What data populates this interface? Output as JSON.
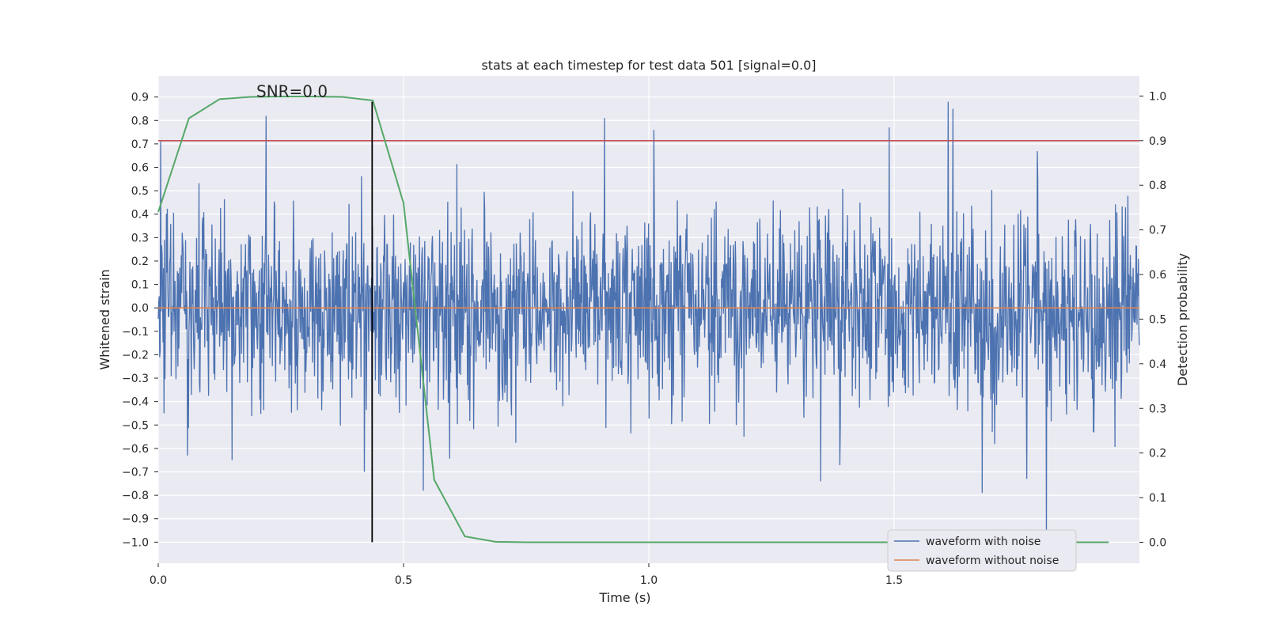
{
  "chart_data": {
    "type": "line",
    "title": "stats at each timestep for test data 501 [signal=0.0]",
    "xlabel": "Time (s)",
    "ylabel": "Whitened strain",
    "y2label": "Detection probability",
    "xlim": [
      0.0,
      2.0
    ],
    "ylim": [
      -1.09,
      0.99
    ],
    "y2lim": [
      -0.047,
      1.045
    ],
    "x_ticks": [
      0.0,
      0.5,
      1.0,
      1.5
    ],
    "x_tick_labels": [
      "0.0",
      "0.5",
      "1.0",
      "1.5"
    ],
    "y_ticks": [
      0.9,
      0.8,
      0.7,
      0.6,
      0.5,
      0.4,
      0.3,
      0.2,
      0.1,
      0.0,
      -0.1,
      -0.2,
      -0.3,
      -0.4,
      -0.5,
      -0.6,
      -0.7,
      -0.8,
      -0.9,
      -1.0
    ],
    "y_tick_labels": [
      "0.9",
      "0.8",
      "0.7",
      "0.6",
      "0.5",
      "0.4",
      "0.3",
      "0.2",
      "0.1",
      "0.0",
      "−0.1",
      "−0.2",
      "−0.3",
      "−0.4",
      "−0.5",
      "−0.6",
      "−0.7",
      "−0.8",
      "−0.9",
      "−1.0"
    ],
    "y2_ticks": [
      1.0,
      0.9,
      0.8,
      0.7,
      0.6,
      0.5,
      0.4,
      0.3,
      0.2,
      0.1,
      0.0
    ],
    "y2_tick_labels": [
      "1.0",
      "0.9",
      "0.8",
      "0.7",
      "0.6",
      "0.5",
      "0.4",
      "0.3",
      "0.2",
      "0.1",
      "0.0"
    ],
    "annotation": "SNR=0.0",
    "annotation_position": [
      0.2,
      0.9
    ],
    "threshold": {
      "axis": "right",
      "value": 0.9,
      "color": "#c44e52"
    },
    "marker_line": {
      "x": 0.436,
      "y_range": [
        -1.0,
        0.88
      ],
      "color": "#000000"
    },
    "legend": {
      "placement": "lower-right",
      "entries": [
        {
          "label": "waveform with noise",
          "color": "#4c72b0"
        },
        {
          "label": "waveform without noise",
          "color": "#dd8452"
        }
      ]
    },
    "series": [
      {
        "name": "waveform with noise",
        "axis": "left",
        "color": "#4c72b0",
        "kind": "noise",
        "x_range": [
          0.0,
          2.0
        ],
        "n_samples": 2048,
        "std": 0.2,
        "y_min": -1.0,
        "y_max": 0.88,
        "spikes": [
          {
            "x": 0.005,
            "y": 0.71
          },
          {
            "x": 0.012,
            "y": -0.45
          },
          {
            "x": 0.06,
            "y": -0.63
          },
          {
            "x": 0.22,
            "y": 0.82
          },
          {
            "x": 0.15,
            "y": -0.65
          },
          {
            "x": 0.42,
            "y": -0.7
          },
          {
            "x": 0.54,
            "y": -0.78
          },
          {
            "x": 0.91,
            "y": 0.81
          },
          {
            "x": 1.01,
            "y": 0.76
          },
          {
            "x": 1.35,
            "y": -0.74
          },
          {
            "x": 1.49,
            "y": 0.77
          },
          {
            "x": 1.61,
            "y": 0.88
          },
          {
            "x": 1.62,
            "y": 0.85
          },
          {
            "x": 1.81,
            "y": -0.98
          },
          {
            "x": 1.68,
            "y": -0.79
          },
          {
            "x": 1.77,
            "y": -0.73
          }
        ]
      },
      {
        "name": "waveform without noise",
        "axis": "left",
        "color": "#dd8452",
        "x": [
          0.0,
          2.0
        ],
        "y": [
          0.0,
          0.0
        ]
      },
      {
        "name": "detection probability",
        "axis": "right",
        "color": "#55a868",
        "x": [
          0.0,
          0.0625,
          0.125,
          0.1875,
          0.25,
          0.3125,
          0.375,
          0.4375,
          0.5,
          0.5625,
          0.625,
          0.6875,
          0.75,
          0.8125,
          0.875,
          0.9375,
          1.0,
          1.0625,
          1.125,
          1.1875,
          1.25,
          1.3125,
          1.375,
          1.4375,
          1.5,
          1.5625,
          1.625,
          1.6875,
          1.75,
          1.8125,
          1.875,
          1.9375
        ],
        "y": [
          0.74,
          0.95,
          0.993,
          0.998,
          0.999,
          0.999,
          0.998,
          0.99,
          0.76,
          0.14,
          0.013,
          0.001,
          0.0,
          0.0,
          0.0,
          0.0,
          0.0,
          0.0,
          0.0,
          0.0,
          0.0,
          0.0,
          0.0,
          0.0,
          0.0,
          0.0,
          0.0,
          0.0,
          0.0,
          0.0,
          0.0,
          0.0
        ]
      }
    ]
  }
}
